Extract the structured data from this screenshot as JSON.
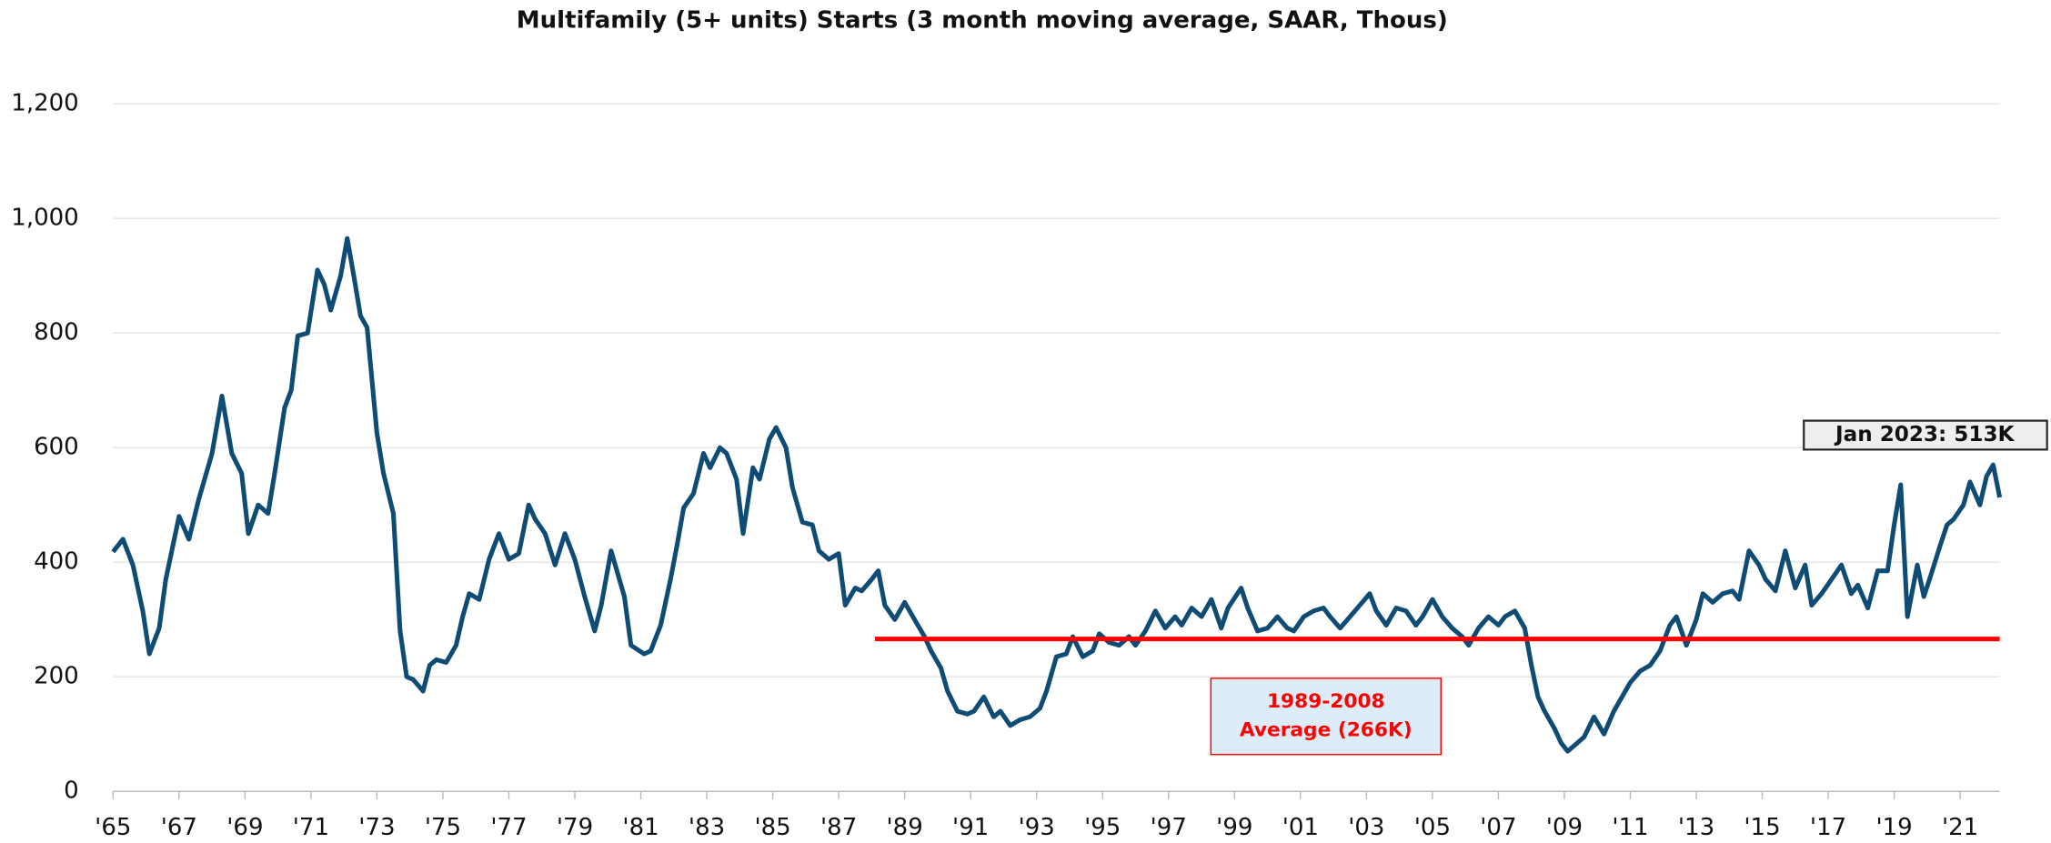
{
  "chart_data": {
    "type": "line",
    "title": "Multifamily (5+ units) Starts (3 month moving average, SAAR, Thous)",
    "x": [
      1965.0,
      1965.3,
      1965.6,
      1965.9,
      1966.1,
      1966.4,
      1966.6,
      1967.0,
      1967.3,
      1967.6,
      1968.0,
      1968.3,
      1968.6,
      1968.9,
      1969.1,
      1969.4,
      1969.7,
      1969.9,
      1970.2,
      1970.4,
      1970.6,
      1970.9,
      1971.2,
      1971.4,
      1971.6,
      1971.9,
      1972.1,
      1972.3,
      1972.5,
      1972.7,
      1973.0,
      1973.2,
      1973.5,
      1973.7,
      1973.9,
      1974.1,
      1974.4,
      1974.6,
      1974.8,
      1975.1,
      1975.4,
      1975.6,
      1975.8,
      1976.1,
      1976.4,
      1976.7,
      1977.0,
      1977.3,
      1977.6,
      1977.8,
      1978.1,
      1978.4,
      1978.7,
      1979.0,
      1979.3,
      1979.6,
      1979.8,
      1980.1,
      1980.5,
      1980.7,
      1981.1,
      1981.3,
      1981.6,
      1981.9,
      1982.1,
      1982.3,
      1982.6,
      1982.9,
      1983.1,
      1983.4,
      1983.6,
      1983.9,
      1984.1,
      1984.4,
      1984.6,
      1984.9,
      1985.1,
      1985.4,
      1985.6,
      1985.9,
      1986.2,
      1986.4,
      1986.7,
      1987.0,
      1987.2,
      1987.5,
      1987.7,
      1988.0,
      1988.2,
      1988.4,
      1988.7,
      1989.0,
      1989.3,
      1989.6,
      1989.8,
      1990.1,
      1990.3,
      1990.6,
      1990.9,
      1991.1,
      1991.4,
      1991.7,
      1991.9,
      1992.2,
      1992.5,
      1992.8,
      1993.1,
      1993.3,
      1993.6,
      1993.9,
      1994.1,
      1994.4,
      1994.7,
      1994.9,
      1995.2,
      1995.5,
      1995.8,
      1996.0,
      1996.3,
      1996.6,
      1996.9,
      1997.2,
      1997.4,
      1997.7,
      1998.0,
      1998.3,
      1998.6,
      1998.8,
      1999.2,
      1999.4,
      1999.7,
      2000.0,
      2000.3,
      2000.6,
      2000.8,
      2001.1,
      2001.4,
      2001.7,
      2001.9,
      2002.2,
      2002.5,
      2002.8,
      2003.1,
      2003.3,
      2003.6,
      2003.9,
      2004.2,
      2004.5,
      2004.7,
      2005.0,
      2005.3,
      2005.6,
      2005.9,
      2006.1,
      2006.4,
      2006.7,
      2007.0,
      2007.2,
      2007.5,
      2007.8,
      2008.0,
      2008.2,
      2008.4,
      2008.7,
      2008.9,
      2009.1,
      2009.4,
      2009.6,
      2009.9,
      2010.2,
      2010.5,
      2010.8,
      2011.0,
      2011.3,
      2011.6,
      2011.9,
      2012.2,
      2012.4,
      2012.7,
      2013.0,
      2013.2,
      2013.5,
      2013.8,
      2014.1,
      2014.3,
      2014.6,
      2014.9,
      2015.1,
      2015.4,
      2015.7,
      2016.0,
      2016.3,
      2016.5,
      2016.8,
      2017.1,
      2017.4,
      2017.7,
      2017.9,
      2018.2,
      2018.5,
      2018.8,
      2019.0,
      2019.2,
      2019.4,
      2019.7,
      2019.9,
      2020.1,
      2020.4,
      2020.6,
      2020.8,
      2021.1,
      2021.3,
      2021.6,
      2021.8,
      2022.0,
      2022.2
    ],
    "series": [
      {
        "color": "#0f4c75",
        "values": [
          418,
          440,
          395,
          315,
          240,
          285,
          370,
          480,
          440,
          510,
          590,
          690,
          590,
          555,
          450,
          500,
          485,
          555,
          670,
          700,
          795,
          800,
          910,
          885,
          840,
          900,
          965,
          900,
          830,
          810,
          625,
          555,
          485,
          280,
          200,
          195,
          175,
          220,
          230,
          225,
          255,
          305,
          345,
          335,
          405,
          450,
          405,
          415,
          500,
          475,
          450,
          395,
          450,
          405,
          340,
          280,
          325,
          420,
          340,
          255,
          240,
          245,
          290,
          370,
          430,
          495,
          520,
          590,
          565,
          600,
          590,
          545,
          450,
          565,
          545,
          615,
          635,
          600,
          530,
          470,
          465,
          420,
          405,
          415,
          325,
          355,
          350,
          370,
          385,
          325,
          300,
          330,
          300,
          270,
          245,
          215,
          175,
          140,
          135,
          140,
          165,
          130,
          140,
          115,
          125,
          130,
          145,
          175,
          235,
          240,
          270,
          235,
          245,
          275,
          260,
          255,
          270,
          255,
          280,
          315,
          285,
          305,
          290,
          320,
          305,
          335,
          285,
          320,
          355,
          320,
          280,
          285,
          305,
          285,
          280,
          305,
          315,
          320,
          305,
          285,
          305,
          325,
          345,
          315,
          290,
          320,
          315,
          290,
          305,
          335,
          305,
          285,
          270,
          255,
          285,
          305,
          290,
          305,
          315,
          285,
          220,
          165,
          140,
          110,
          85,
          70,
          85,
          95,
          130,
          100,
          140,
          170,
          190,
          210,
          220,
          245,
          290,
          305,
          255,
          300,
          345,
          330,
          345,
          350,
          335,
          420,
          395,
          370,
          350,
          420,
          355,
          395,
          325,
          345,
          370,
          395,
          345,
          360,
          320,
          385,
          385,
          465,
          535,
          305,
          395,
          340,
          375,
          430,
          465,
          475,
          500,
          540,
          500,
          550,
          570,
          513
        ]
      }
    ],
    "average_line": {
      "value": 266,
      "x": [
        1988.1,
        2022.2
      ],
      "color": "#ff0000",
      "label": [
        "1989-2008",
        "Average (266K)"
      ]
    },
    "annotation": "Jan 2023: 513K",
    "xlim": [
      1965,
      2022.2
    ],
    "xticks": [
      {
        "value": 1965,
        "label": "'65"
      },
      {
        "value": 1967,
        "label": "'67"
      },
      {
        "value": 1969,
        "label": "'69"
      },
      {
        "value": 1971,
        "label": "'71"
      },
      {
        "value": 1973,
        "label": "'73"
      },
      {
        "value": 1975,
        "label": "'75"
      },
      {
        "value": 1977,
        "label": "'77"
      },
      {
        "value": 1979,
        "label": "'79"
      },
      {
        "value": 1981,
        "label": "'81"
      },
      {
        "value": 1983,
        "label": "'83"
      },
      {
        "value": 1985,
        "label": "'85"
      },
      {
        "value": 1987,
        "label": "'87"
      },
      {
        "value": 1989,
        "label": "'89"
      },
      {
        "value": 1991,
        "label": "'91"
      },
      {
        "value": 1993,
        "label": "'93"
      },
      {
        "value": 1995,
        "label": "'95"
      },
      {
        "value": 1997,
        "label": "'97"
      },
      {
        "value": 1999,
        "label": "'99"
      },
      {
        "value": 2001,
        "label": "'01"
      },
      {
        "value": 2003,
        "label": "'03"
      },
      {
        "value": 2005,
        "label": "'05"
      },
      {
        "value": 2007,
        "label": "'07"
      },
      {
        "value": 2009,
        "label": "'09"
      },
      {
        "value": 2011,
        "label": "'11"
      },
      {
        "value": 2013,
        "label": "'13"
      },
      {
        "value": 2015,
        "label": "'15"
      },
      {
        "value": 2017,
        "label": "'17"
      },
      {
        "value": 2019,
        "label": "'19"
      },
      {
        "value": 2021,
        "label": "'21"
      }
    ],
    "ylim": [
      0,
      1200
    ],
    "yticks": [
      0,
      200,
      400,
      600,
      800,
      {
        "value": 1000,
        "label": "1,000"
      },
      {
        "value": 1200,
        "label": "1,200"
      }
    ],
    "grid": true
  }
}
